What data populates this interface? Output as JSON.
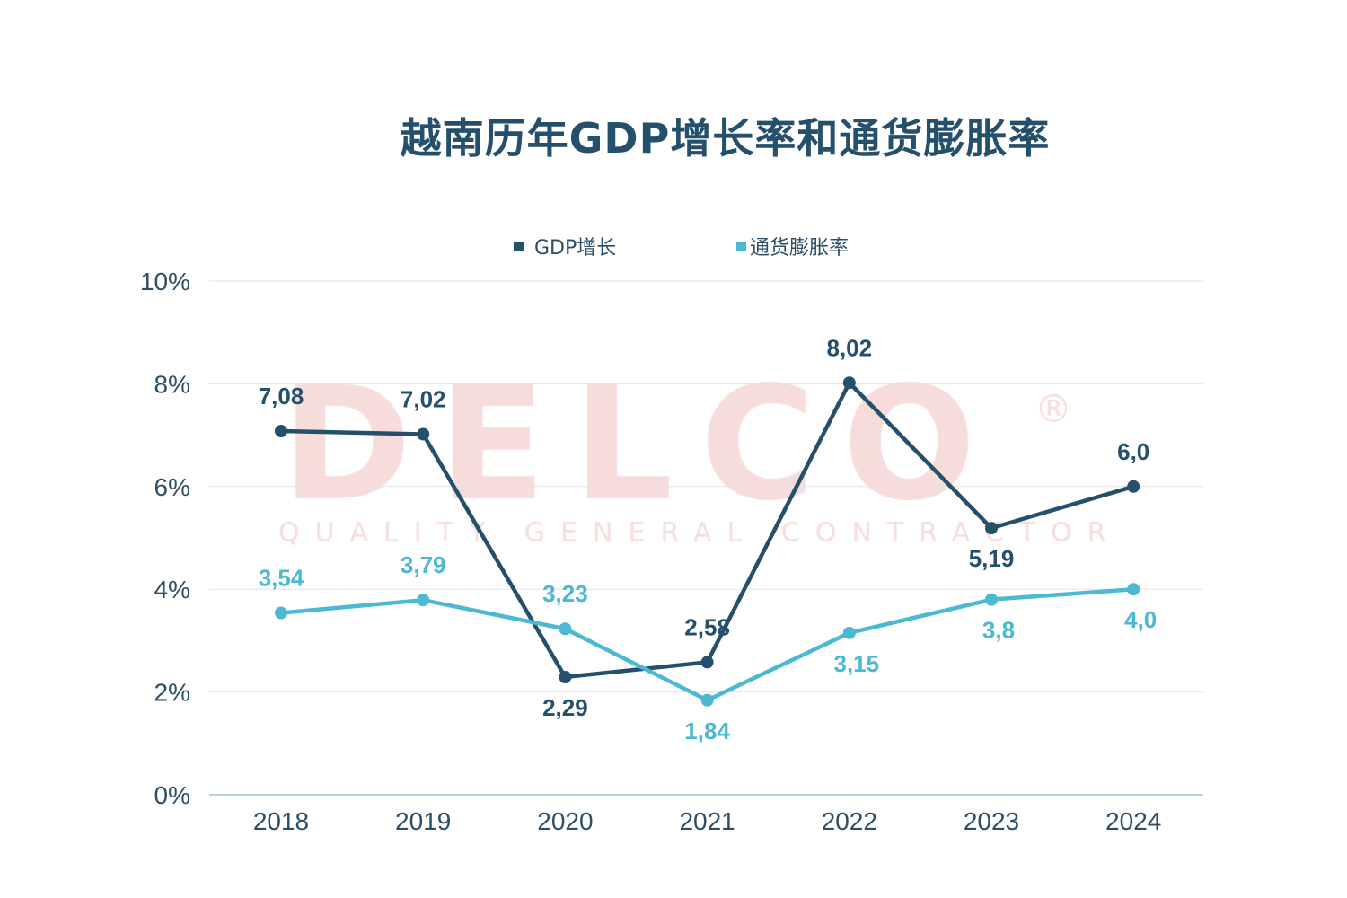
{
  "chart_data": {
    "type": "line",
    "title": "越南历年GDP增长率和通货膨胀率",
    "categories": [
      "2018",
      "2019",
      "2020",
      "2021",
      "2022",
      "2023",
      "2024"
    ],
    "series": [
      {
        "name": "GDP增长",
        "color": "#24506b",
        "values": [
          7.08,
          7.02,
          2.29,
          2.58,
          8.02,
          5.19,
          6.0
        ],
        "labels": [
          "7,08",
          "7,02",
          "2,29",
          "2,58",
          "8,02",
          "5,19",
          "6,0"
        ]
      },
      {
        "name": "通货膨胀率",
        "color": "#4cb8d2",
        "values": [
          3.54,
          3.79,
          3.23,
          1.84,
          3.15,
          3.8,
          4.0
        ],
        "labels": [
          "3,54",
          "3,79",
          "3,23",
          "1,84",
          "3,15",
          "3,8",
          "4,0"
        ]
      }
    ],
    "ylim": [
      0,
      10
    ],
    "yticks": [
      "0%",
      "2%",
      "4%",
      "6%",
      "8%",
      "10%"
    ],
    "ytick_values": [
      0,
      2,
      4,
      6,
      8,
      10
    ],
    "grid": true,
    "legend": "top-center",
    "xlabel": "",
    "ylabel": ""
  },
  "watermark": {
    "brand": "DELCO",
    "mark": "®",
    "tagline": "QUALITY GENERAL CONTRACTOR",
    "color": "#f6d8d8"
  }
}
